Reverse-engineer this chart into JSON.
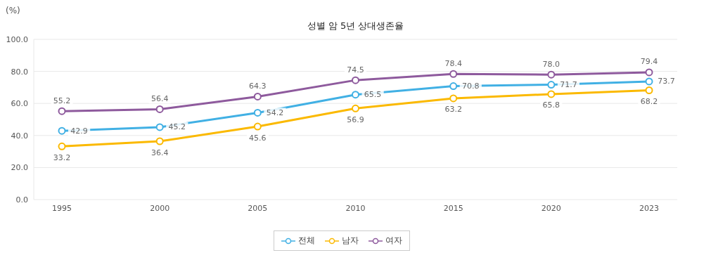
{
  "chart_data": {
    "type": "line",
    "title": "성별 암 5년 상대생존율",
    "ylabel": "(%)",
    "categories": [
      "1995",
      "2000",
      "2005",
      "2010",
      "2015",
      "2020",
      "2023"
    ],
    "series": [
      {
        "name": "전체",
        "color": "#41b0e4",
        "values": [
          42.9,
          45.2,
          54.2,
          65.5,
          70.8,
          71.7,
          73.7
        ],
        "value_labels": [
          "42.9",
          "45.2",
          "54.2",
          "65.5",
          "70.8",
          "71.7",
          "73.7"
        ]
      },
      {
        "name": "남자",
        "color": "#fbb900",
        "values": [
          33.2,
          36.4,
          45.6,
          56.9,
          63.2,
          65.8,
          68.2
        ],
        "value_labels": [
          "33.2",
          "36.4",
          "45.6",
          "56.9",
          "63.2",
          "65.8",
          "68.2"
        ]
      },
      {
        "name": "여자",
        "color": "#8e5a9d",
        "values": [
          55.2,
          56.4,
          64.3,
          74.5,
          78.4,
          78.0,
          79.4
        ],
        "value_labels": [
          "55.2",
          "56.4",
          "64.3",
          "74.5",
          "78.4",
          "78.0",
          "79.4"
        ]
      }
    ],
    "ylim": [
      0,
      100
    ],
    "yticks": [
      {
        "value": 0,
        "label": "0.0"
      },
      {
        "value": 20,
        "label": "20.0"
      },
      {
        "value": 40,
        "label": "40.0"
      },
      {
        "value": 60,
        "label": "60.0"
      },
      {
        "value": 80,
        "label": "80.0"
      },
      {
        "value": 100,
        "label": "100.0"
      }
    ],
    "grid": "y",
    "legend": "bottom",
    "marker": "circle",
    "line_style": "solid"
  }
}
